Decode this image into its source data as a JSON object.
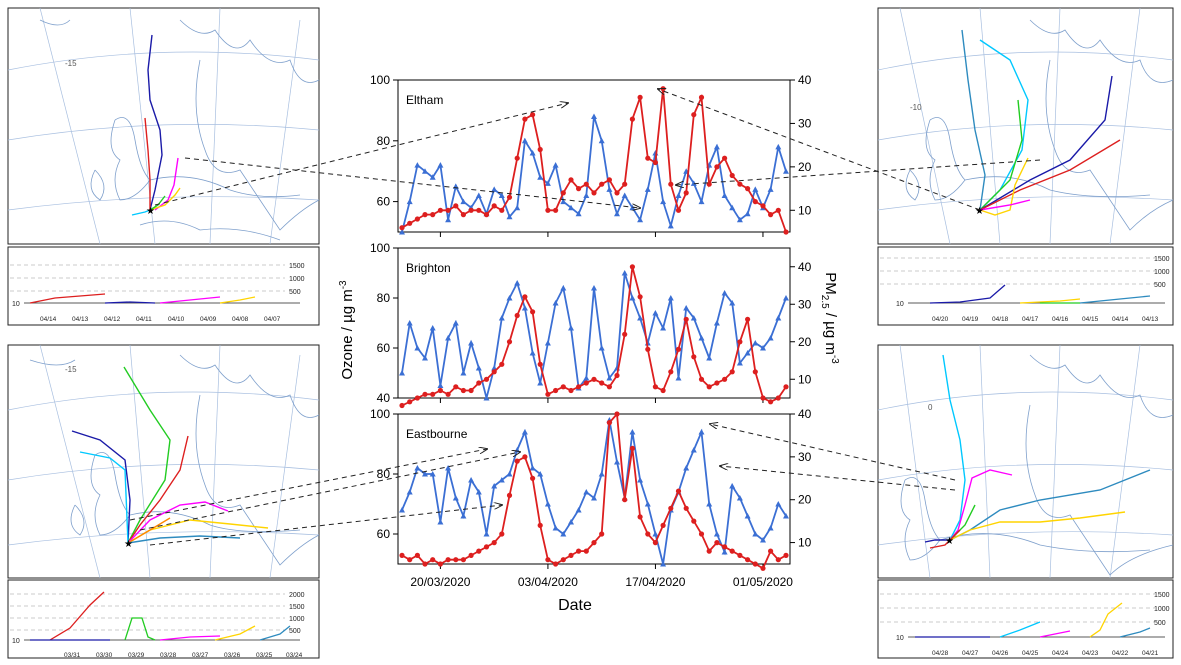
{
  "colors": {
    "ozone": "#3b6fd4",
    "pm25": "#dd1f1f",
    "map_sea": "#ffffff",
    "map_border": "#7fa0cc",
    "traj": [
      "#dd1f1f",
      "#1a1aa8",
      "#ff00ff",
      "#ffd400",
      "#00c8ff",
      "#22cc22",
      "#2e8bbf",
      "#ff8800"
    ]
  },
  "shared": {
    "xlabel": "Date",
    "ylabel_left": "Ozone / µg m",
    "ylabel_left_sup": "-3",
    "ylabel_right_pre": "PM",
    "ylabel_right_sub": "2.5",
    "ylabel_right_post": " / µg m",
    "ylabel_right_sup": "-3",
    "x_ticks": [
      "20/03/2020",
      "03/04/2020",
      "17/04/2020",
      "01/05/2020"
    ]
  },
  "chart_data": [
    {
      "type": "line",
      "title": "Eltham",
      "x": [
        "15/03",
        "16/03",
        "17/03",
        "18/03",
        "19/03",
        "20/03",
        "21/03",
        "22/03",
        "23/03",
        "24/03",
        "25/03",
        "26/03",
        "27/03",
        "28/03",
        "29/03",
        "30/03",
        "31/03",
        "01/04",
        "02/04",
        "03/04",
        "04/04",
        "05/04",
        "06/04",
        "07/04",
        "08/04",
        "09/04",
        "10/04",
        "11/04",
        "12/04",
        "13/04",
        "14/04",
        "15/04",
        "16/04",
        "17/04",
        "18/04",
        "19/04",
        "20/04",
        "21/04",
        "22/04",
        "23/04",
        "24/04",
        "25/04",
        "26/04",
        "27/04",
        "28/04",
        "29/04",
        "30/04",
        "01/05",
        "02/05",
        "03/05",
        "04/05"
      ],
      "ylim_left": [
        50,
        100
      ],
      "ylim_right": [
        5,
        40
      ],
      "left_ticks": [
        60,
        80,
        100
      ],
      "right_ticks": [
        10,
        20,
        30,
        40
      ],
      "series": [
        {
          "axis": "left",
          "values": [
            50,
            60,
            72,
            70,
            68,
            72,
            54,
            65,
            60,
            58,
            62,
            56,
            64,
            62,
            55,
            58,
            80,
            76,
            68,
            66,
            72,
            60,
            58,
            56,
            62,
            88,
            80,
            64,
            56,
            62,
            58,
            54,
            64,
            76,
            60,
            52,
            62,
            70,
            66,
            60,
            72,
            78,
            62,
            58,
            54,
            56,
            64,
            58,
            64,
            78,
            70
          ]
        },
        {
          "axis": "right",
          "values": [
            6,
            7,
            8,
            9,
            9,
            10,
            10,
            11,
            9,
            10,
            10,
            9,
            11,
            10,
            13,
            22,
            31,
            32,
            24,
            10,
            10,
            14,
            17,
            15,
            16,
            14,
            16,
            17,
            14,
            16,
            31,
            36,
            22,
            21,
            38,
            16,
            10,
            14,
            32,
            36,
            16,
            20,
            22,
            18,
            16,
            15,
            12,
            11,
            9,
            10,
            5
          ]
        }
      ]
    },
    {
      "type": "line",
      "title": "Brighton",
      "x": [
        "15/03",
        "16/03",
        "17/03",
        "18/03",
        "19/03",
        "20/03",
        "21/03",
        "22/03",
        "23/03",
        "24/03",
        "25/03",
        "26/03",
        "27/03",
        "28/03",
        "29/03",
        "30/03",
        "31/03",
        "01/04",
        "02/04",
        "03/04",
        "04/04",
        "05/04",
        "06/04",
        "07/04",
        "08/04",
        "09/04",
        "10/04",
        "11/04",
        "12/04",
        "13/04",
        "14/04",
        "15/04",
        "16/04",
        "17/04",
        "18/04",
        "19/04",
        "20/04",
        "21/04",
        "22/04",
        "23/04",
        "24/04",
        "25/04",
        "26/04",
        "27/04",
        "28/04",
        "29/04",
        "30/04",
        "01/05",
        "02/05",
        "03/05",
        "04/05"
      ],
      "ylim_left": [
        40,
        100
      ],
      "ylim_right": [
        5,
        45
      ],
      "left_ticks": [
        40,
        60,
        80,
        100
      ],
      "right_ticks": [
        10,
        20,
        30,
        40
      ],
      "series": [
        {
          "axis": "left",
          "values": [
            50,
            70,
            60,
            56,
            68,
            45,
            64,
            70,
            50,
            62,
            52,
            40,
            52,
            72,
            80,
            86,
            76,
            58,
            46,
            62,
            78,
            84,
            68,
            44,
            48,
            84,
            60,
            48,
            52,
            90,
            80,
            72,
            62,
            74,
            68,
            80,
            48,
            76,
            72,
            64,
            56,
            70,
            82,
            78,
            54,
            58,
            62,
            60,
            64,
            72,
            80
          ]
        },
        {
          "axis": "right",
          "values": [
            3,
            4,
            5,
            6,
            6,
            7,
            6,
            8,
            7,
            7,
            9,
            10,
            12,
            14,
            20,
            27,
            32,
            28,
            14,
            6,
            7,
            8,
            7,
            8,
            9,
            10,
            9,
            8,
            11,
            22,
            40,
            32,
            18,
            8,
            7,
            12,
            18,
            26,
            16,
            10,
            8,
            9,
            10,
            12,
            20,
            26,
            12,
            5,
            4,
            5,
            8
          ]
        }
      ]
    },
    {
      "type": "line",
      "title": "Eastbourne",
      "x": [
        "15/03",
        "16/03",
        "17/03",
        "18/03",
        "19/03",
        "20/03",
        "21/03",
        "22/03",
        "23/03",
        "24/03",
        "25/03",
        "26/03",
        "27/03",
        "28/03",
        "29/03",
        "30/03",
        "31/03",
        "01/04",
        "02/04",
        "03/04",
        "04/04",
        "05/04",
        "06/04",
        "07/04",
        "08/04",
        "09/04",
        "10/04",
        "11/04",
        "12/04",
        "13/04",
        "14/04",
        "15/04",
        "16/04",
        "17/04",
        "18/04",
        "19/04",
        "20/04",
        "21/04",
        "22/04",
        "23/04",
        "24/04",
        "25/04",
        "26/04",
        "27/04",
        "28/04",
        "29/04",
        "30/04",
        "01/05",
        "02/05",
        "03/05",
        "04/05"
      ],
      "ylim_left": [
        50,
        100
      ],
      "ylim_right": [
        5,
        40
      ],
      "left_ticks": [
        60,
        80,
        100
      ],
      "right_ticks": [
        10,
        20,
        30,
        40
      ],
      "series": [
        {
          "axis": "left",
          "values": [
            68,
            74,
            82,
            80,
            80,
            64,
            82,
            72,
            66,
            78,
            74,
            60,
            76,
            78,
            80,
            88,
            94,
            82,
            80,
            70,
            62,
            60,
            64,
            68,
            74,
            72,
            80,
            98,
            84,
            72,
            94,
            78,
            70,
            60,
            50,
            68,
            74,
            82,
            88,
            94,
            70,
            60,
            54,
            76,
            72,
            66,
            60,
            58,
            62,
            70,
            66
          ]
        },
        {
          "axis": "right",
          "values": [
            7,
            6,
            7,
            5,
            6,
            5,
            6,
            6,
            6,
            7,
            8,
            9,
            10,
            12,
            21,
            29,
            30,
            25,
            14,
            6,
            5,
            6,
            7,
            8,
            8,
            10,
            12,
            38,
            40,
            20,
            32,
            16,
            12,
            10,
            14,
            18,
            22,
            18,
            15,
            12,
            8,
            10,
            9,
            8,
            7,
            6,
            5,
            4,
            8,
            6,
            7
          ]
        }
      ]
    }
  ],
  "trajectory_panels": [
    {
      "id": "top-left",
      "map_label": "-15",
      "y_ticks": [
        "1500",
        "1000",
        "500"
      ],
      "base_tick": "10",
      "dates": [
        "04/14",
        "04/13",
        "04/12",
        "04/11",
        "04/10",
        "04/09",
        "04/08",
        "04/07"
      ]
    },
    {
      "id": "top-right",
      "map_label": "-10",
      "y_ticks": [
        "1500",
        "1000",
        "500"
      ],
      "base_tick": "10",
      "dates": [
        "04/20",
        "04/19",
        "04/18",
        "04/17",
        "04/16",
        "04/15",
        "04/14",
        "04/13"
      ]
    },
    {
      "id": "bottom-left",
      "map_label": "-15",
      "y_ticks": [
        "2000",
        "1500",
        "1000",
        "500"
      ],
      "base_tick": "10",
      "dates": [
        "03/31",
        "03/30",
        "03/29",
        "03/28",
        "03/27",
        "03/26",
        "03/25",
        "03/24"
      ]
    },
    {
      "id": "bottom-right",
      "map_label": "0",
      "y_ticks": [
        "1500",
        "1000",
        "500"
      ],
      "base_tick": "10",
      "dates": [
        "04/28",
        "04/27",
        "04/26",
        "04/25",
        "04/24",
        "04/23",
        "04/22",
        "04/21"
      ]
    }
  ]
}
